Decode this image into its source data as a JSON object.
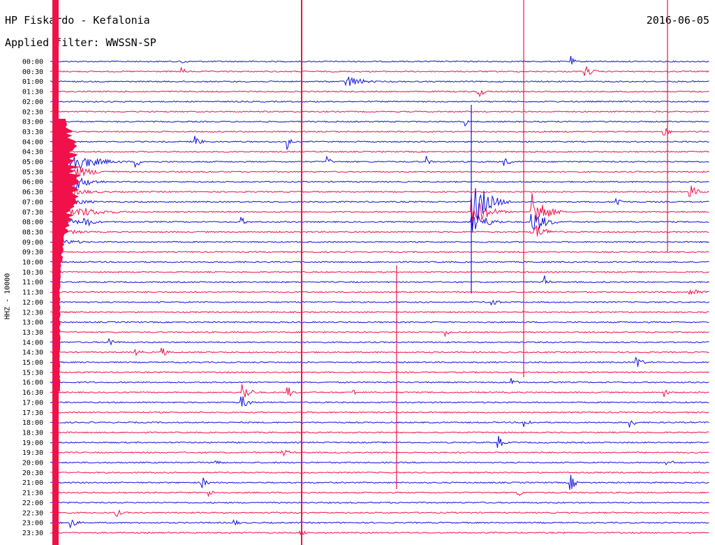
{
  "header": {
    "station": "HP Fiskardo - Kefalonia",
    "filter": "Applied filter: WWSSN-SP",
    "date": "2016-06-05"
  },
  "colors": {
    "trace_a": "#1010dd",
    "trace_b": "#f0104a",
    "background": "#ffffff",
    "text": "#000000"
  },
  "chart_data": {
    "type": "line",
    "title": "HP Fiskardo - Kefalonia",
    "subtitle": "Applied filter: WWSSN-SP",
    "date": "2016-06-05",
    "ylabel": "HHZ - 10000",
    "row_labels": [
      "00:00",
      "00:30",
      "01:00",
      "01:30",
      "02:00",
      "02:30",
      "03:00",
      "03:30",
      "04:00",
      "04:30",
      "05:00",
      "05:30",
      "06:00",
      "06:30",
      "07:00",
      "07:30",
      "08:00",
      "08:30",
      "09:00",
      "09:30",
      "10:00",
      "10:30",
      "11:00",
      "11:30",
      "12:00",
      "12:30",
      "13:00",
      "13:30",
      "14:00",
      "14:30",
      "15:00",
      "15:30",
      "16:00",
      "16:30",
      "17:00",
      "17:30",
      "18:00",
      "18:30",
      "19:00",
      "19:30",
      "20:00",
      "20:30",
      "21:00",
      "21:30",
      "22:00",
      "22:30",
      "23:00",
      "23:30"
    ],
    "row_duration_min": 30,
    "series_colors": [
      "#1010dd",
      "#f0104a"
    ],
    "events": [
      {
        "t": 0.01,
        "rows": [
          0,
          47
        ],
        "amp": 1,
        "kind": "saturated"
      },
      {
        "t": 0.02,
        "row": 10,
        "amp": 22,
        "dur": 0.1,
        "spread": 9
      },
      {
        "t": 0.03,
        "row": 12,
        "amp": 18,
        "dur": 0.06
      },
      {
        "t": 0.04,
        "row": 15,
        "amp": 8,
        "dur": 0.12
      },
      {
        "t": 0.05,
        "row": 16,
        "amp": 10,
        "dur": 0.04
      },
      {
        "t": 0.2,
        "row": 0,
        "amp": 7,
        "dur": 0.015
      },
      {
        "t": 0.2,
        "row": 1,
        "amp": 7,
        "dur": 0.015
      },
      {
        "t": 0.45,
        "row": 2,
        "amp": 10,
        "dur": 0.06
      },
      {
        "t": 0.65,
        "row": 3,
        "amp": 9,
        "dur": 0.025
      },
      {
        "t": 0.63,
        "row": 6,
        "amp": 6,
        "dur": 0.01
      },
      {
        "t": 0.22,
        "row": 8,
        "amp": 11,
        "dur": 0.02
      },
      {
        "t": 0.36,
        "row": 8,
        "amp": 16,
        "dur": 0.01
      },
      {
        "t": 0.13,
        "row": 10,
        "amp": 9,
        "dur": 0.02
      },
      {
        "t": 0.42,
        "row": 10,
        "amp": 9,
        "dur": 0.015
      },
      {
        "t": 0.57,
        "row": 10,
        "amp": 9,
        "dur": 0.015
      },
      {
        "t": 0.69,
        "row": 10,
        "amp": 9,
        "dur": 0.02
      },
      {
        "t": 0.64,
        "row": 14,
        "amp": 40,
        "dur": 0.06,
        "spread": 3
      },
      {
        "t": 0.73,
        "row": 15,
        "amp": 35,
        "dur": 0.05,
        "spread": 3
      },
      {
        "t": 0.29,
        "row": 16,
        "amp": 7,
        "dur": 0.02
      },
      {
        "t": 0.86,
        "row": 14,
        "amp": 8,
        "dur": 0.02
      },
      {
        "t": 0.79,
        "row": 0,
        "amp": 8,
        "dur": 0.015
      },
      {
        "t": 0.81,
        "row": 1,
        "amp": 10,
        "dur": 0.03
      },
      {
        "t": 0.93,
        "row": 7,
        "amp": 10,
        "dur": 0.02
      },
      {
        "t": 0.97,
        "row": 13,
        "amp": 12,
        "dur": 0.03
      },
      {
        "t": 0.75,
        "row": 22,
        "amp": 10,
        "dur": 0.015
      },
      {
        "t": 0.67,
        "row": 24,
        "amp": 10,
        "dur": 0.02
      },
      {
        "t": 0.97,
        "row": 23,
        "amp": 7,
        "dur": 0.05
      },
      {
        "t": 0.09,
        "row": 28,
        "amp": 8,
        "dur": 0.02
      },
      {
        "t": 0.13,
        "row": 29,
        "amp": 8,
        "dur": 0.02
      },
      {
        "t": 0.17,
        "row": 29,
        "amp": 8,
        "dur": 0.02
      },
      {
        "t": 0.6,
        "row": 27,
        "amp": 6,
        "dur": 0.02
      },
      {
        "t": 0.89,
        "row": 30,
        "amp": 12,
        "dur": 0.02
      },
      {
        "t": 0.29,
        "row": 33,
        "amp": 18,
        "dur": 0.03,
        "spread": 2
      },
      {
        "t": 0.36,
        "row": 33,
        "amp": 10,
        "dur": 0.02
      },
      {
        "t": 0.46,
        "row": 33,
        "amp": 7,
        "dur": 0.01
      },
      {
        "t": 0.7,
        "row": 32,
        "amp": 7,
        "dur": 0.02
      },
      {
        "t": 0.93,
        "row": 33,
        "amp": 8,
        "dur": 0.02
      },
      {
        "t": 0.72,
        "row": 36,
        "amp": 9,
        "dur": 0.02
      },
      {
        "t": 0.88,
        "row": 36,
        "amp": 9,
        "dur": 0.02
      },
      {
        "t": 0.68,
        "row": 38,
        "amp": 10,
        "dur": 0.02
      },
      {
        "t": 0.35,
        "row": 39,
        "amp": 6,
        "dur": 0.04
      },
      {
        "t": 0.25,
        "row": 40,
        "amp": 8,
        "dur": 0.02
      },
      {
        "t": 0.93,
        "row": 40,
        "amp": 4,
        "dur": 0.06
      },
      {
        "t": 0.23,
        "row": 42,
        "amp": 10,
        "dur": 0.02
      },
      {
        "t": 0.79,
        "row": 42,
        "amp": 12,
        "dur": 0.02
      },
      {
        "t": 0.24,
        "row": 43,
        "amp": 6,
        "dur": 0.02
      },
      {
        "t": 0.71,
        "row": 43,
        "amp": 6,
        "dur": 0.02
      },
      {
        "t": 0.1,
        "row": 45,
        "amp": 7,
        "dur": 0.02
      },
      {
        "t": 0.03,
        "row": 46,
        "amp": 8,
        "dur": 0.03
      },
      {
        "t": 0.28,
        "row": 46,
        "amp": 5,
        "dur": 0.02
      },
      {
        "t": 0.38,
        "row": 47,
        "amp": 6,
        "dur": 0.02
      }
    ]
  }
}
